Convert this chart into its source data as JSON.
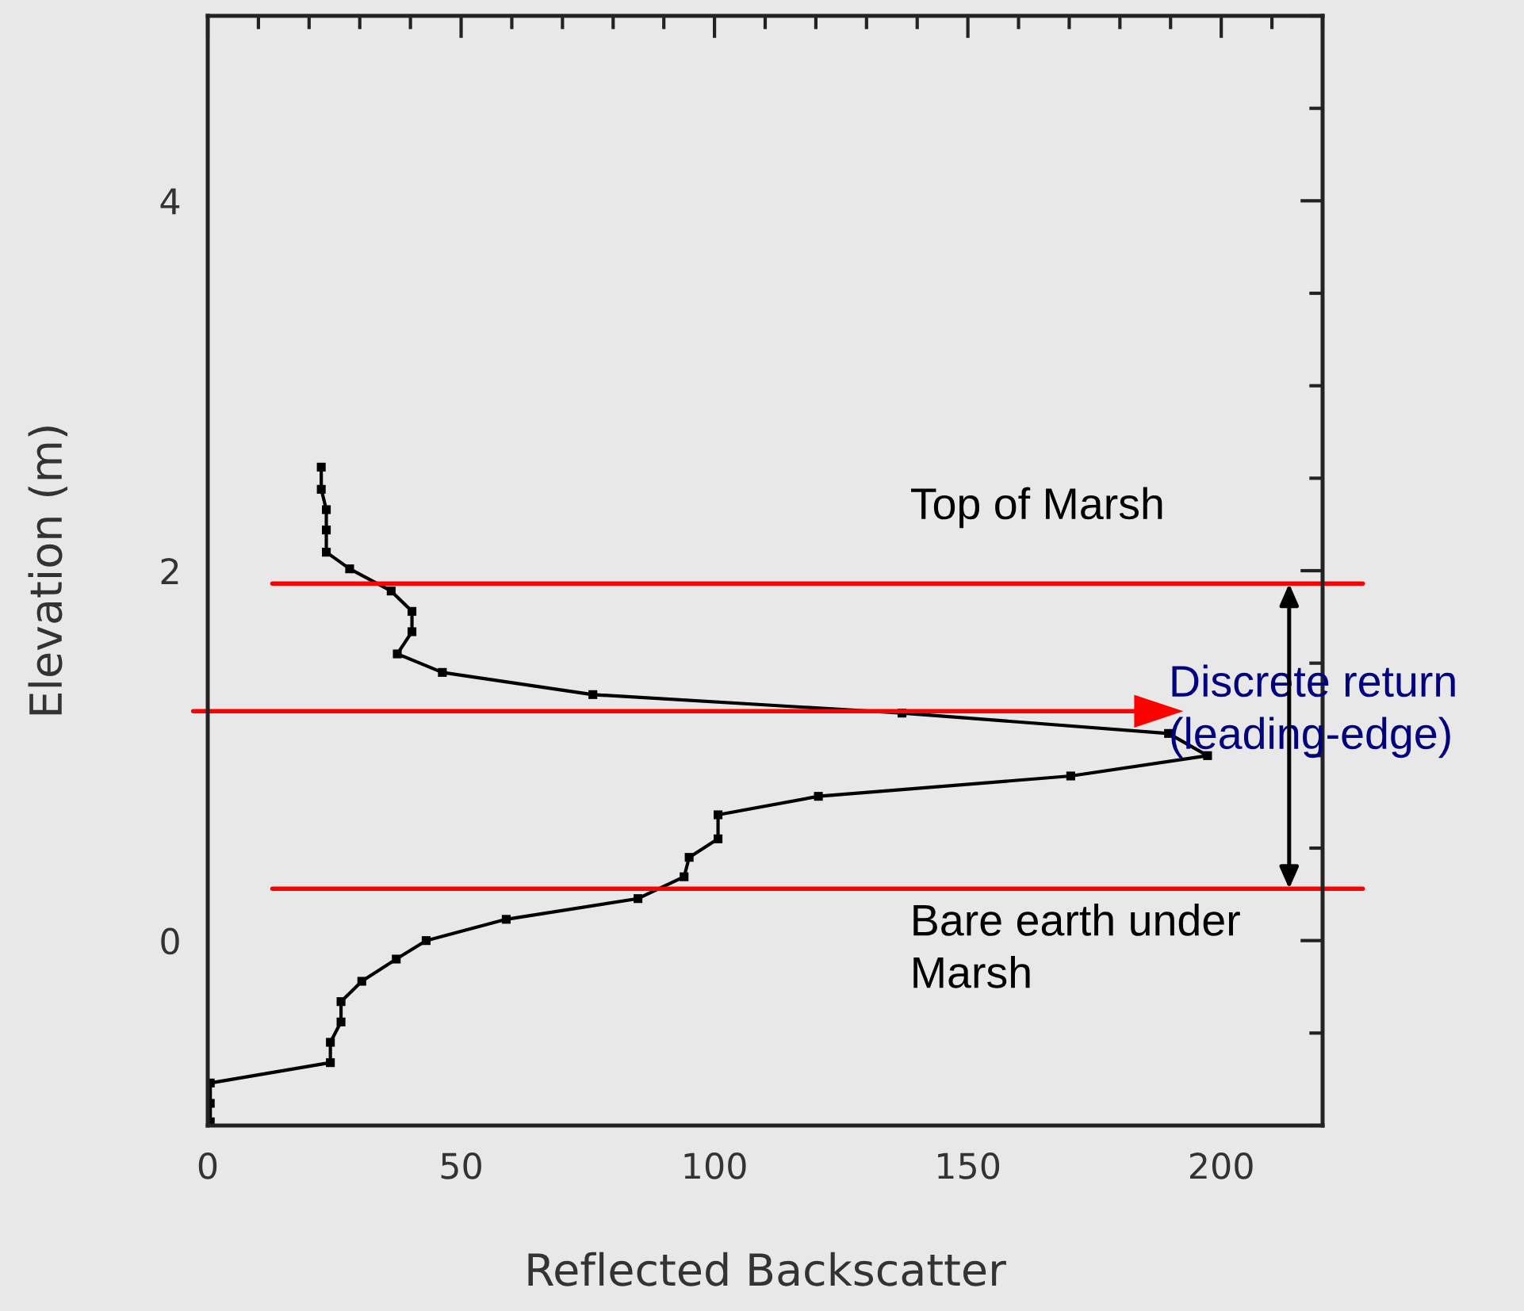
{
  "chart_data": {
    "type": "line",
    "xlabel": "Reflected Backscatter",
    "ylabel": "Elevation (m)",
    "xlim": [
      0,
      220
    ],
    "xticks": [
      0,
      50,
      100,
      150,
      200
    ],
    "ylim": [
      -1,
      5
    ],
    "yticks": [
      {
        "value": 0,
        "label": "0"
      },
      {
        "value": 2,
        "label": "2"
      },
      {
        "value": 4,
        "label": "4"
      }
    ],
    "marker": "square",
    "grid": false,
    "series": [
      {
        "color": "#000000",
        "x": [
          22.4,
          22.4,
          23.4,
          23.4,
          23.4,
          28.0,
          36.2,
          40.3,
          40.3,
          37.4,
          46.3,
          76.0,
          137,
          189.6,
          197.3,
          170.3,
          120.5,
          100.7,
          100.7,
          95.0,
          94.0,
          84.9,
          58.9,
          43.1,
          37.2,
          30.4,
          26.3,
          26.3,
          24.2,
          24.2,
          0.5,
          0.5,
          0.5
        ],
        "values": [
          2.56,
          2.44,
          2.33,
          2.22,
          2.1,
          2.01,
          1.89,
          1.78,
          1.67,
          1.55,
          1.45,
          1.33,
          1.23,
          1.12,
          1.0,
          0.89,
          0.78,
          0.68,
          0.55,
          0.45,
          0.345,
          0.227,
          0.115,
          0.0,
          -0.1,
          -0.22,
          -0.33,
          -0.44,
          -0.55,
          -0.66,
          -0.77,
          -0.88,
          -0.98
        ]
      }
    ],
    "ref_lines": [
      {
        "axis": "y",
        "value": 1.93,
        "label": "Top of Marsh",
        "color": "#ff0000"
      },
      {
        "axis": "y",
        "value": 1.24,
        "label": "Discrete return\n(leading-edge)",
        "color": "#ff0000"
      },
      {
        "axis": "y",
        "value": 0.28,
        "label": "Bare earth under\nMarsh",
        "color": "#ff0000"
      }
    ]
  }
}
